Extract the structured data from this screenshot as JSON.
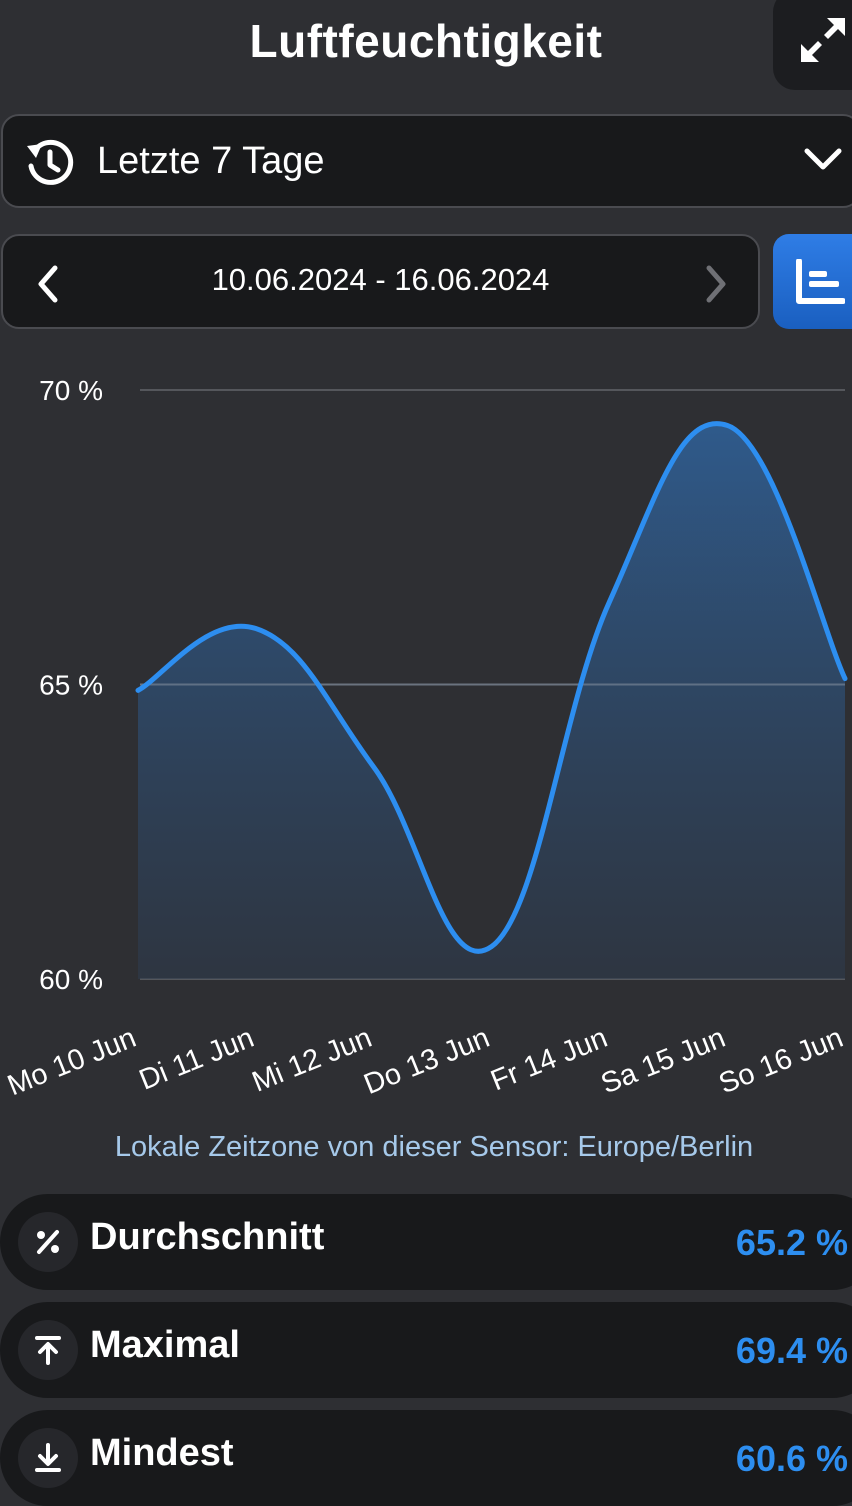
{
  "header": {
    "title": "Luftfeuchtigkeit",
    "expand_icon": "expand-icon"
  },
  "range_select": {
    "label": "Letzte 7 Tage",
    "icon": "history-icon",
    "dropdown_icon": "chevron-down-icon"
  },
  "date_nav": {
    "range": "10.06.2024 - 16.06.2024",
    "prev_icon": "chevron-left-icon",
    "next_icon": "chevron-right-icon"
  },
  "chart_toggle": {
    "icon": "chart-icon",
    "color": "#2f7de6"
  },
  "chart_data": {
    "type": "area",
    "categories": [
      "Mo 10 Jun",
      "Di 11 Jun",
      "Mi 12 Jun",
      "Do 13 Jun",
      "Fr 14 Jun",
      "Sa 15 Jun",
      "So 16 Jun"
    ],
    "series": [
      {
        "values": [
          64.9,
          65.95,
          63.6,
          60.55,
          66.4,
          69.4,
          65.1
        ]
      }
    ],
    "yticks": [
      "60 %",
      "65 %",
      "70 %"
    ],
    "ylim": [
      60,
      70
    ],
    "grid": true,
    "line_color": "#2d8ef0"
  },
  "timezone_note": "Lokale Zeitzone von dieser Sensor: Europe/Berlin",
  "stats": [
    {
      "name": "Durchschnitt",
      "value": "65.2 %",
      "icon": "percent-icon"
    },
    {
      "name": "Maximal",
      "value": "69.4 %",
      "icon": "arrow-up-to-line-icon"
    },
    {
      "name": "Mindest",
      "value": "60.6 %",
      "icon": "arrow-down-to-line-icon"
    }
  ]
}
